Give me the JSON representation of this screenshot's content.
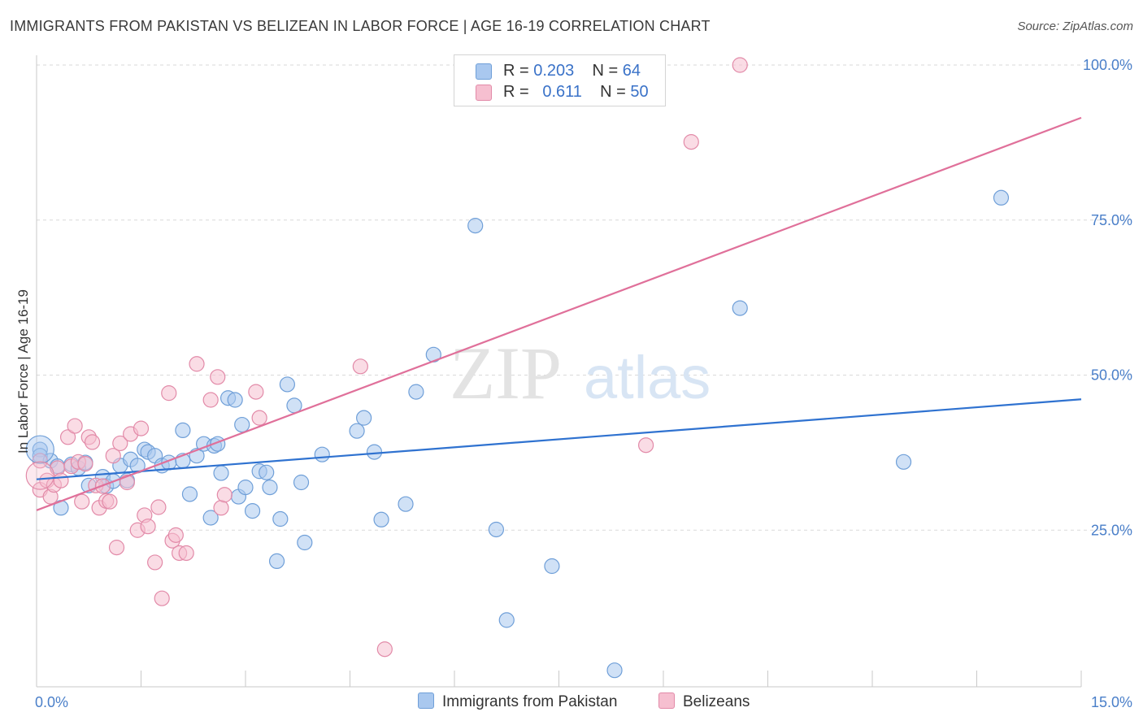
{
  "title": "IMMIGRANTS FROM PAKISTAN VS BELIZEAN IN LABOR FORCE | AGE 16-19 CORRELATION CHART",
  "source": "Source: ZipAtlas.com",
  "watermark": {
    "zip": "ZIP",
    "atlas": "atlas"
  },
  "legend": {
    "rows": [
      {
        "r_label": "R =",
        "r_value": "0.203",
        "n_label": "N =",
        "n_value": "64"
      },
      {
        "r_label": "R =",
        "r_value": "0.611",
        "n_label": "N =",
        "n_value": "50"
      }
    ]
  },
  "colors": {
    "blue_fill": "#a9c8ef",
    "blue_stroke": "#6f9fd8",
    "blue_line": "#2f72d0",
    "pink_fill": "#f6bfd0",
    "pink_stroke": "#e28aa8",
    "pink_line": "#e0709a",
    "tick_text": "#4a7fc9",
    "grid": "#d9d9d9"
  },
  "chart_data": {
    "type": "scatter",
    "title": "IMMIGRANTS FROM PAKISTAN VS BELIZEAN IN LABOR FORCE | AGE 16-19 CORRELATION CHART",
    "xlabel": "",
    "ylabel": "In Labor Force | Age 16-19",
    "xlim": [
      0,
      15
    ],
    "ylim": [
      0,
      102
    ],
    "x_tick_labels": [
      "0.0%",
      "15.0%"
    ],
    "y_ticks": [
      25,
      50,
      75,
      100
    ],
    "y_tick_labels": [
      "25.0%",
      "50.0%",
      "75.0%",
      "100.0%"
    ],
    "grid": true,
    "legend_position": "top-center",
    "series": [
      {
        "name": "Immigrants from Pakistan",
        "color": "#6f9fd8",
        "trend": {
          "x": [
            0,
            15
          ],
          "y": [
            33.2,
            46.1
          ]
        },
        "points": [
          [
            0.05,
            38.0
          ],
          [
            0.05,
            37.0
          ],
          [
            0.2,
            36.2
          ],
          [
            0.3,
            35.3
          ],
          [
            0.35,
            28.6
          ],
          [
            0.5,
            35.6
          ],
          [
            0.6,
            35.0
          ],
          [
            0.7,
            35.9
          ],
          [
            0.75,
            32.2
          ],
          [
            0.95,
            33.6
          ],
          [
            1.0,
            32.1
          ],
          [
            1.1,
            32.9
          ],
          [
            1.2,
            35.4
          ],
          [
            1.3,
            33.0
          ],
          [
            1.35,
            36.4
          ],
          [
            1.45,
            35.4
          ],
          [
            1.55,
            38.0
          ],
          [
            1.6,
            37.6
          ],
          [
            1.7,
            37.0
          ],
          [
            1.8,
            35.4
          ],
          [
            1.9,
            35.9
          ],
          [
            2.1,
            36.2
          ],
          [
            2.1,
            41.1
          ],
          [
            2.2,
            30.8
          ],
          [
            2.3,
            37.0
          ],
          [
            2.4,
            38.9
          ],
          [
            2.5,
            27.0
          ],
          [
            2.55,
            38.6
          ],
          [
            2.6,
            38.9
          ],
          [
            2.65,
            34.2
          ],
          [
            2.75,
            46.3
          ],
          [
            2.85,
            46.0
          ],
          [
            2.9,
            30.4
          ],
          [
            2.95,
            42.0
          ],
          [
            3.0,
            31.9
          ],
          [
            3.1,
            28.1
          ],
          [
            3.2,
            34.5
          ],
          [
            3.3,
            34.3
          ],
          [
            3.35,
            31.9
          ],
          [
            3.45,
            20.0
          ],
          [
            3.5,
            26.8
          ],
          [
            3.6,
            48.5
          ],
          [
            3.7,
            45.1
          ],
          [
            3.8,
            32.7
          ],
          [
            3.85,
            23.0
          ],
          [
            4.1,
            37.2
          ],
          [
            4.6,
            41.0
          ],
          [
            4.7,
            43.1
          ],
          [
            4.85,
            37.6
          ],
          [
            4.95,
            26.7
          ],
          [
            5.3,
            29.2
          ],
          [
            5.45,
            47.3
          ],
          [
            5.7,
            53.3
          ],
          [
            6.3,
            74.1
          ],
          [
            6.6,
            25.1
          ],
          [
            6.75,
            10.5
          ],
          [
            7.4,
            19.2
          ],
          [
            8.3,
            2.4
          ],
          [
            10.1,
            60.8
          ],
          [
            12.45,
            36.0
          ],
          [
            13.85,
            78.6
          ]
        ]
      },
      {
        "name": "Belizeans",
        "color": "#e28aa8",
        "trend": {
          "x": [
            0,
            15
          ],
          "y": [
            28.2,
            91.5
          ]
        },
        "points": [
          [
            0.05,
            36.2
          ],
          [
            0.05,
            31.5
          ],
          [
            0.15,
            33.0
          ],
          [
            0.2,
            30.4
          ],
          [
            0.25,
            32.3
          ],
          [
            0.3,
            35.0
          ],
          [
            0.35,
            33.0
          ],
          [
            0.45,
            40.0
          ],
          [
            0.5,
            35.3
          ],
          [
            0.55,
            41.8
          ],
          [
            0.6,
            36.0
          ],
          [
            0.65,
            29.6
          ],
          [
            0.7,
            35.7
          ],
          [
            0.75,
            40.0
          ],
          [
            0.8,
            39.2
          ],
          [
            0.85,
            32.2
          ],
          [
            0.9,
            28.6
          ],
          [
            0.95,
            32.1
          ],
          [
            1.0,
            29.7
          ],
          [
            1.05,
            29.6
          ],
          [
            1.1,
            37.0
          ],
          [
            1.15,
            22.2
          ],
          [
            1.2,
            39.0
          ],
          [
            1.3,
            32.7
          ],
          [
            1.35,
            40.5
          ],
          [
            1.45,
            25.0
          ],
          [
            1.5,
            41.4
          ],
          [
            1.55,
            27.4
          ],
          [
            1.6,
            25.6
          ],
          [
            1.7,
            19.8
          ],
          [
            1.75,
            28.7
          ],
          [
            1.8,
            14.0
          ],
          [
            1.9,
            47.1
          ],
          [
            1.95,
            23.3
          ],
          [
            2.0,
            24.2
          ],
          [
            2.05,
            21.3
          ],
          [
            2.15,
            21.3
          ],
          [
            2.3,
            51.8
          ],
          [
            2.5,
            46.0
          ],
          [
            2.6,
            49.7
          ],
          [
            2.65,
            28.6
          ],
          [
            2.7,
            30.7
          ],
          [
            3.15,
            47.3
          ],
          [
            3.2,
            43.1
          ],
          [
            4.65,
            51.4
          ],
          [
            5.0,
            5.8
          ],
          [
            8.75,
            38.7
          ],
          [
            9.4,
            87.6
          ],
          [
            10.1,
            100.0
          ]
        ]
      }
    ]
  },
  "bottom_legend": [
    {
      "label": "Immigrants from Pakistan"
    },
    {
      "label": "Belizeans"
    }
  ]
}
